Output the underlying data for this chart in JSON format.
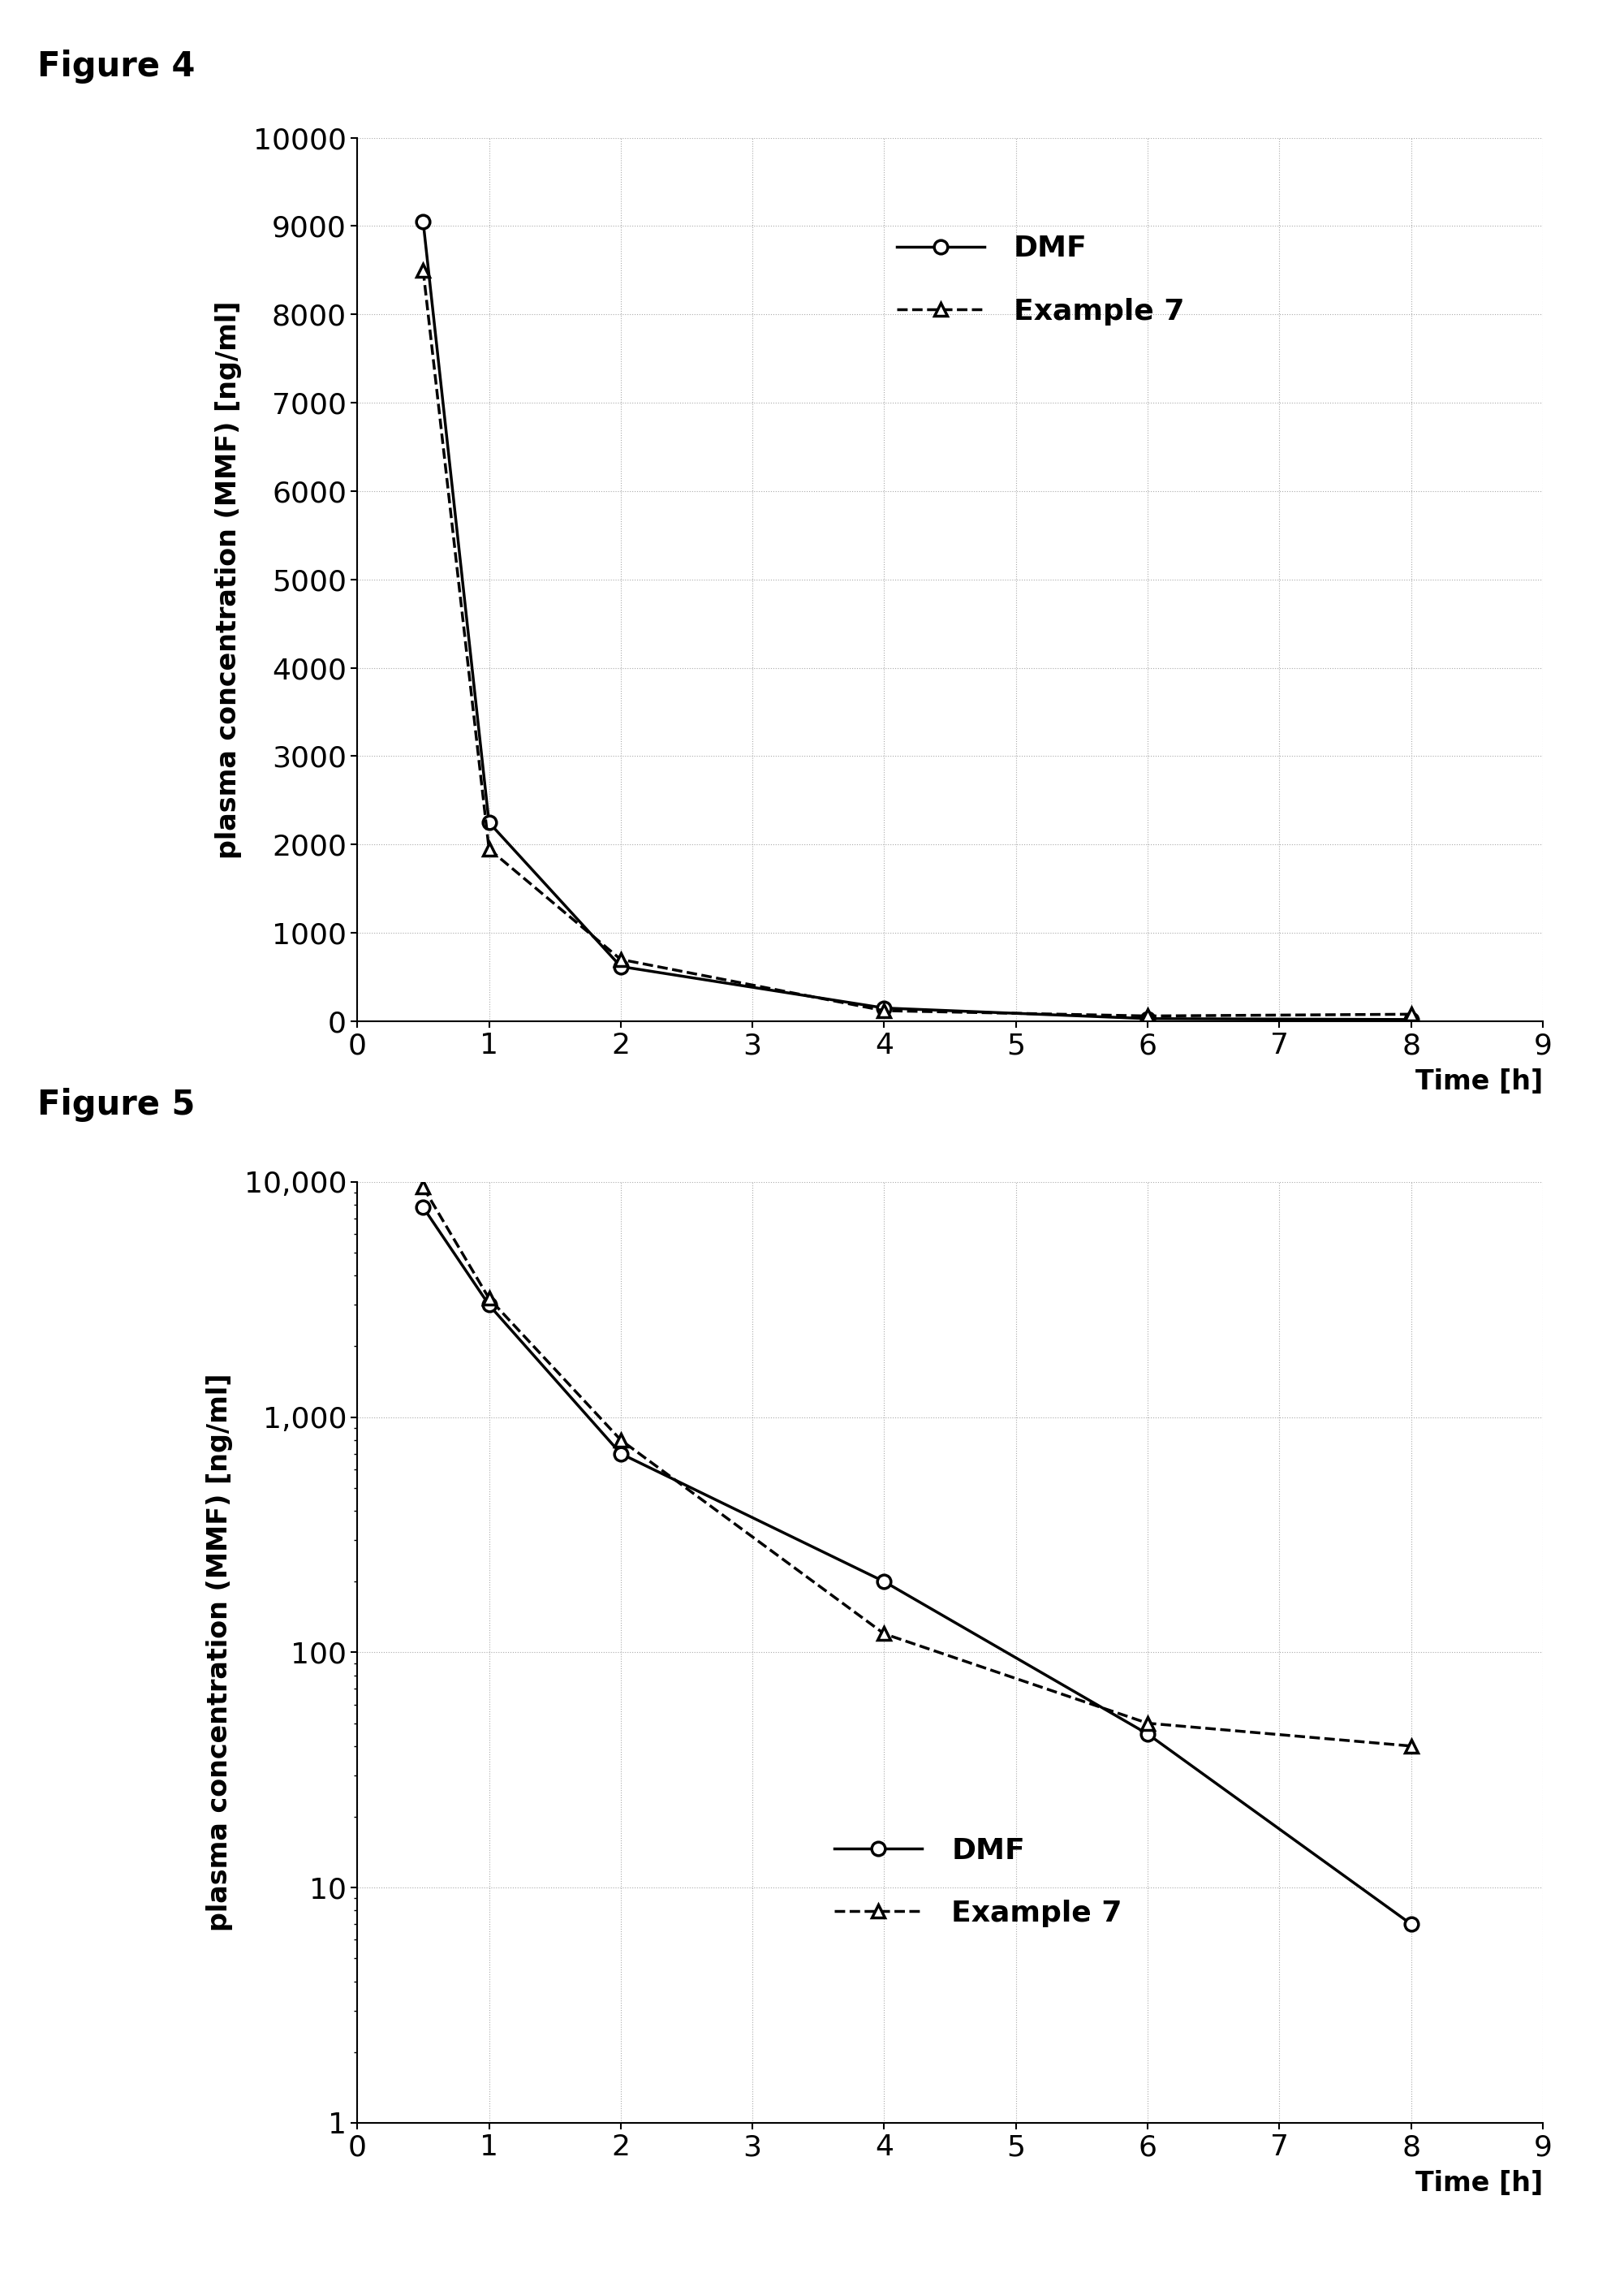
{
  "fig4_title": "Figure 4",
  "fig5_title": "Figure 5",
  "fig4_dmf_x": [
    0.5,
    1.0,
    2.0,
    4.0,
    6.0,
    8.0
  ],
  "fig4_dmf_y": [
    9050,
    2250,
    620,
    150,
    30,
    20
  ],
  "fig4_ex7_x": [
    0.5,
    1.0,
    2.0,
    4.0,
    6.0,
    8.0
  ],
  "fig4_ex7_y": [
    8500,
    1950,
    700,
    120,
    60,
    80
  ],
  "fig5_dmf_x": [
    0.5,
    1.0,
    2.0,
    4.0,
    6.0,
    8.0
  ],
  "fig5_dmf_y": [
    7800,
    3000,
    700,
    200,
    45,
    7
  ],
  "fig5_ex7_x": [
    0.5,
    1.0,
    2.0,
    4.0,
    6.0,
    8.0
  ],
  "fig5_ex7_y": [
    9500,
    3200,
    800,
    120,
    50,
    40
  ],
  "fig4_ylabel": "plasma concentration (MMF) [ng/ml]",
  "fig5_ylabel": "plasma concentration (MMF) [ng/ml]",
  "xlabel": "Time [h]",
  "fig4_ylim": [
    0,
    10000
  ],
  "fig4_yticks": [
    0,
    1000,
    2000,
    3000,
    4000,
    5000,
    6000,
    7000,
    8000,
    9000,
    10000
  ],
  "fig4_xlim": [
    0,
    9
  ],
  "fig4_xticks": [
    0,
    1,
    2,
    3,
    4,
    5,
    6,
    7,
    8,
    9
  ],
  "fig5_ylim_log": [
    1,
    10000
  ],
  "fig5_xlim": [
    0,
    9
  ],
  "fig5_xticks": [
    0,
    1,
    2,
    3,
    4,
    5,
    6,
    7,
    8,
    9
  ],
  "dmf_label": "DMF",
  "ex7_label": "Example 7",
  "line_color": "#000000",
  "background_color": "#ffffff",
  "title_fontsize": 30,
  "label_fontsize": 24,
  "tick_fontsize": 26,
  "legend_fontsize": 26
}
